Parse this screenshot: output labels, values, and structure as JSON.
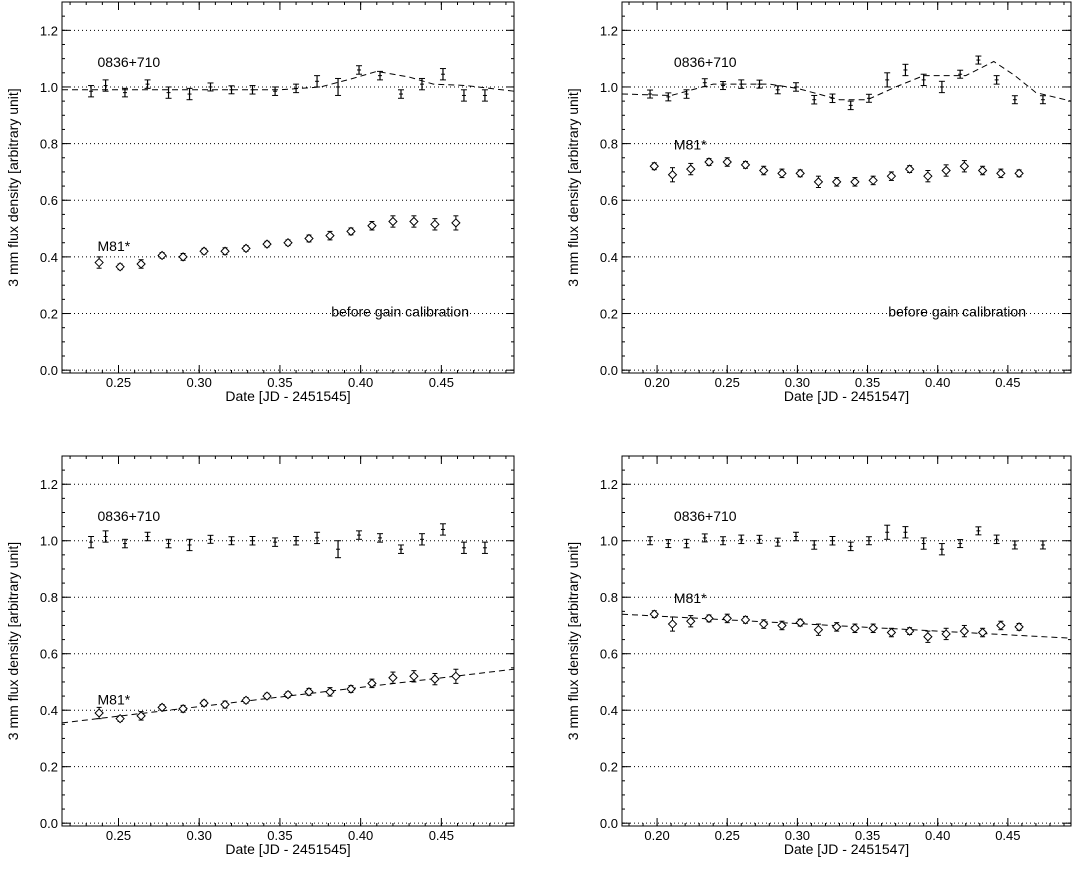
{
  "chart_data": [
    {
      "type": "scatter",
      "xlabel": "Date [JD - 2451545]",
      "ylabel": "3 mm flux density [arbitrary unit]",
      "xlim": [
        0.215,
        0.495
      ],
      "ylim": [
        -0.01,
        1.3
      ],
      "xticks": [
        0.25,
        0.3,
        0.35,
        0.4,
        0.45
      ],
      "xtick_labels": [
        "0.25",
        "0.30",
        "0.35",
        "0.40",
        "0.45"
      ],
      "yticks": [
        0.0,
        0.2,
        0.4,
        0.6,
        0.8,
        1.0,
        1.2
      ],
      "ytick_labels": [
        "0.0",
        "0.2",
        "0.4",
        "0.6",
        "0.8",
        "1.0",
        "1.2"
      ],
      "grid": "horizontal-dotted",
      "note": "before gain calibration",
      "series": [
        {
          "name": "0836+710",
          "marker": "errorbar",
          "label_at": [
            0.237,
            1.07
          ],
          "x": [
            0.233,
            0.242,
            0.254,
            0.268,
            0.281,
            0.294,
            0.307,
            0.32,
            0.333,
            0.347,
            0.36,
            0.373,
            0.386,
            0.399,
            0.412,
            0.425,
            0.438,
            0.451,
            0.464,
            0.477
          ],
          "y": [
            0.985,
            1.005,
            0.98,
            1.01,
            0.98,
            0.975,
            1.0,
            0.99,
            0.99,
            0.985,
            0.995,
            1.02,
            1.0,
            1.06,
            1.04,
            0.975,
            1.01,
            1.045,
            0.97,
            0.97
          ],
          "err": [
            0.02,
            0.02,
            0.015,
            0.015,
            0.02,
            0.02,
            0.01,
            0.012,
            0.015,
            0.015,
            0.015,
            0.02,
            0.03,
            0.015,
            0.015,
            0.015,
            0.02,
            0.02,
            0.02,
            0.02
          ]
        },
        {
          "name": "M81*",
          "marker": "diamond",
          "label_at": [
            0.237,
            0.42
          ],
          "x": [
            0.238,
            0.251,
            0.264,
            0.277,
            0.29,
            0.303,
            0.316,
            0.329,
            0.342,
            0.355,
            0.368,
            0.381,
            0.394,
            0.407,
            0.42,
            0.433,
            0.446,
            0.459
          ],
          "y": [
            0.38,
            0.365,
            0.375,
            0.405,
            0.4,
            0.42,
            0.42,
            0.43,
            0.445,
            0.45,
            0.465,
            0.475,
            0.49,
            0.51,
            0.525,
            0.525,
            0.515,
            0.52
          ],
          "err": [
            0.02,
            0.01,
            0.015,
            0.01,
            0.012,
            0.01,
            0.012,
            0.01,
            0.01,
            0.01,
            0.012,
            0.015,
            0.012,
            0.015,
            0.02,
            0.02,
            0.02,
            0.025
          ]
        }
      ],
      "fit_lines": [
        {
          "for": "0836+710",
          "x": [
            0.215,
            0.25,
            0.3,
            0.35,
            0.375,
            0.395,
            0.41,
            0.43,
            0.445,
            0.465,
            0.495
          ],
          "y": [
            0.99,
            0.99,
            0.99,
            0.99,
            1.0,
            1.03,
            1.055,
            1.035,
            1.01,
            1.005,
            0.985
          ]
        }
      ]
    },
    {
      "type": "scatter",
      "xlabel": "Date [JD - 2451547]",
      "ylabel": "3 mm flux density [arbitrary unit]",
      "xlim": [
        0.175,
        0.495
      ],
      "ylim": [
        -0.01,
        1.3
      ],
      "xticks": [
        0.2,
        0.25,
        0.3,
        0.35,
        0.4,
        0.45
      ],
      "xtick_labels": [
        "0.20",
        "0.25",
        "0.30",
        "0.35",
        "0.40",
        "0.45"
      ],
      "yticks": [
        0.0,
        0.2,
        0.4,
        0.6,
        0.8,
        1.0,
        1.2
      ],
      "ytick_labels": [
        "0.0",
        "0.2",
        "0.4",
        "0.6",
        "0.8",
        "1.0",
        "1.2"
      ],
      "grid": "horizontal-dotted",
      "note": "before gain calibration",
      "series": [
        {
          "name": "0836+710",
          "marker": "errorbar",
          "label_at": [
            0.212,
            1.07
          ],
          "x": [
            0.195,
            0.208,
            0.221,
            0.234,
            0.247,
            0.26,
            0.273,
            0.286,
            0.299,
            0.312,
            0.325,
            0.338,
            0.351,
            0.364,
            0.377,
            0.39,
            0.403,
            0.416,
            0.429,
            0.442,
            0.455,
            0.475
          ],
          "y": [
            0.975,
            0.965,
            0.975,
            1.015,
            1.005,
            1.01,
            1.01,
            0.99,
            1.0,
            0.955,
            0.96,
            0.935,
            0.96,
            1.025,
            1.06,
            1.025,
            1.0,
            1.045,
            1.095,
            1.025,
            0.955,
            0.955
          ],
          "err": [
            0.012,
            0.012,
            0.015,
            0.012,
            0.012,
            0.015,
            0.012,
            0.012,
            0.015,
            0.015,
            0.015,
            0.015,
            0.012,
            0.025,
            0.02,
            0.02,
            0.02,
            0.012,
            0.012,
            0.015,
            0.01,
            0.01
          ]
        },
        {
          "name": "M81*",
          "marker": "diamond",
          "label_at": [
            0.212,
            0.78
          ],
          "x": [
            0.198,
            0.211,
            0.224,
            0.237,
            0.25,
            0.263,
            0.276,
            0.289,
            0.302,
            0.315,
            0.328,
            0.341,
            0.354,
            0.367,
            0.38,
            0.393,
            0.406,
            0.419,
            0.432,
            0.445,
            0.458
          ],
          "y": [
            0.72,
            0.69,
            0.71,
            0.735,
            0.735,
            0.725,
            0.705,
            0.695,
            0.695,
            0.665,
            0.665,
            0.665,
            0.67,
            0.685,
            0.71,
            0.685,
            0.705,
            0.72,
            0.705,
            0.695,
            0.695
          ],
          "err": [
            0.012,
            0.025,
            0.02,
            0.012,
            0.015,
            0.012,
            0.015,
            0.015,
            0.012,
            0.02,
            0.015,
            0.015,
            0.015,
            0.015,
            0.012,
            0.02,
            0.02,
            0.02,
            0.015,
            0.015,
            0.012
          ]
        }
      ],
      "fit_lines": [
        {
          "for": "0836+710",
          "x": [
            0.175,
            0.21,
            0.24,
            0.28,
            0.3,
            0.33,
            0.35,
            0.37,
            0.39,
            0.42,
            0.44,
            0.455,
            0.47,
            0.495
          ],
          "y": [
            0.975,
            0.97,
            1.01,
            1.01,
            0.995,
            0.955,
            0.955,
            1.0,
            1.04,
            1.04,
            1.09,
            1.04,
            0.98,
            0.95
          ]
        }
      ]
    },
    {
      "type": "scatter",
      "xlabel": "Date [JD - 2451545]",
      "ylabel": "3 mm flux density [arbitrary unit]",
      "xlim": [
        0.215,
        0.495
      ],
      "ylim": [
        -0.01,
        1.3
      ],
      "xticks": [
        0.25,
        0.3,
        0.35,
        0.4,
        0.45
      ],
      "xtick_labels": [
        "0.25",
        "0.30",
        "0.35",
        "0.40",
        "0.45"
      ],
      "yticks": [
        0.0,
        0.2,
        0.4,
        0.6,
        0.8,
        1.0,
        1.2
      ],
      "ytick_labels": [
        "0.0",
        "0.2",
        "0.4",
        "0.6",
        "0.8",
        "1.0",
        "1.2"
      ],
      "grid": "horizontal-dotted",
      "note": "",
      "series": [
        {
          "name": "0836+710",
          "marker": "errorbar",
          "label_at": [
            0.237,
            1.07
          ],
          "x": [
            0.233,
            0.242,
            0.254,
            0.268,
            0.281,
            0.294,
            0.307,
            0.32,
            0.333,
            0.347,
            0.36,
            0.373,
            0.386,
            0.399,
            0.412,
            0.425,
            0.438,
            0.451,
            0.464,
            0.477
          ],
          "y": [
            0.995,
            1.015,
            0.99,
            1.015,
            0.99,
            0.985,
            1.005,
            1.0,
            1.0,
            0.995,
            1.0,
            1.01,
            0.97,
            1.02,
            1.01,
            0.97,
            1.005,
            1.04,
            0.975,
            0.975
          ],
          "err": [
            0.02,
            0.02,
            0.015,
            0.015,
            0.015,
            0.02,
            0.01,
            0.012,
            0.015,
            0.015,
            0.015,
            0.02,
            0.03,
            0.015,
            0.015,
            0.015,
            0.02,
            0.02,
            0.02,
            0.02
          ]
        },
        {
          "name": "M81*",
          "marker": "diamond",
          "label_at": [
            0.237,
            0.42
          ],
          "x": [
            0.238,
            0.251,
            0.264,
            0.277,
            0.29,
            0.303,
            0.316,
            0.329,
            0.342,
            0.355,
            0.368,
            0.381,
            0.394,
            0.407,
            0.42,
            0.433,
            0.446,
            0.459
          ],
          "y": [
            0.39,
            0.37,
            0.38,
            0.41,
            0.405,
            0.425,
            0.42,
            0.435,
            0.45,
            0.455,
            0.465,
            0.465,
            0.475,
            0.495,
            0.515,
            0.52,
            0.51,
            0.52
          ],
          "err": [
            0.02,
            0.01,
            0.015,
            0.01,
            0.012,
            0.01,
            0.012,
            0.01,
            0.01,
            0.01,
            0.012,
            0.015,
            0.012,
            0.015,
            0.02,
            0.02,
            0.02,
            0.025
          ]
        }
      ],
      "fit_lines": [
        {
          "for": "M81*",
          "x": [
            0.215,
            0.495
          ],
          "y": [
            0.355,
            0.545
          ]
        }
      ]
    },
    {
      "type": "scatter",
      "xlabel": "Date [JD - 2451547]",
      "ylabel": "3 mm flux density [arbitrary unit]",
      "xlim": [
        0.175,
        0.495
      ],
      "ylim": [
        -0.01,
        1.3
      ],
      "xticks": [
        0.2,
        0.25,
        0.3,
        0.35,
        0.4,
        0.45
      ],
      "xtick_labels": [
        "0.20",
        "0.25",
        "0.30",
        "0.35",
        "0.40",
        "0.45"
      ],
      "yticks": [
        0.0,
        0.2,
        0.4,
        0.6,
        0.8,
        1.0,
        1.2
      ],
      "ytick_labels": [
        "0.0",
        "0.2",
        "0.4",
        "0.6",
        "0.8",
        "1.0",
        "1.2"
      ],
      "grid": "horizontal-dotted",
      "note": "",
      "series": [
        {
          "name": "0836+710",
          "marker": "errorbar",
          "label_at": [
            0.212,
            1.07
          ],
          "x": [
            0.195,
            0.208,
            0.221,
            0.234,
            0.247,
            0.26,
            0.273,
            0.286,
            0.299,
            0.312,
            0.325,
            0.338,
            0.351,
            0.364,
            0.377,
            0.39,
            0.403,
            0.416,
            0.429,
            0.442,
            0.455,
            0.475
          ],
          "y": [
            1.0,
            0.99,
            0.99,
            1.01,
            1.0,
            1.005,
            1.005,
            0.995,
            1.015,
            0.985,
            1.0,
            0.98,
            1.0,
            1.03,
            1.03,
            0.99,
            0.97,
            0.99,
            1.035,
            1.005,
            0.985,
            0.985
          ],
          "err": [
            0.012,
            0.012,
            0.015,
            0.012,
            0.012,
            0.015,
            0.012,
            0.012,
            0.015,
            0.015,
            0.015,
            0.015,
            0.012,
            0.025,
            0.02,
            0.02,
            0.02,
            0.012,
            0.012,
            0.015,
            0.01,
            0.01
          ]
        },
        {
          "name": "M81*",
          "marker": "diamond",
          "label_at": [
            0.212,
            0.78
          ],
          "x": [
            0.198,
            0.211,
            0.224,
            0.237,
            0.25,
            0.263,
            0.276,
            0.289,
            0.302,
            0.315,
            0.328,
            0.341,
            0.354,
            0.367,
            0.38,
            0.393,
            0.406,
            0.419,
            0.432,
            0.445,
            0.458
          ],
          "y": [
            0.74,
            0.705,
            0.715,
            0.725,
            0.725,
            0.72,
            0.705,
            0.7,
            0.71,
            0.685,
            0.695,
            0.69,
            0.69,
            0.675,
            0.68,
            0.66,
            0.67,
            0.68,
            0.675,
            0.7,
            0.695
          ],
          "err": [
            0.012,
            0.025,
            0.02,
            0.012,
            0.015,
            0.012,
            0.015,
            0.015,
            0.012,
            0.02,
            0.015,
            0.015,
            0.015,
            0.015,
            0.012,
            0.02,
            0.02,
            0.02,
            0.015,
            0.015,
            0.012
          ]
        }
      ],
      "fit_lines": [
        {
          "for": "M81*",
          "x": [
            0.175,
            0.495
          ],
          "y": [
            0.74,
            0.655
          ]
        }
      ]
    }
  ]
}
